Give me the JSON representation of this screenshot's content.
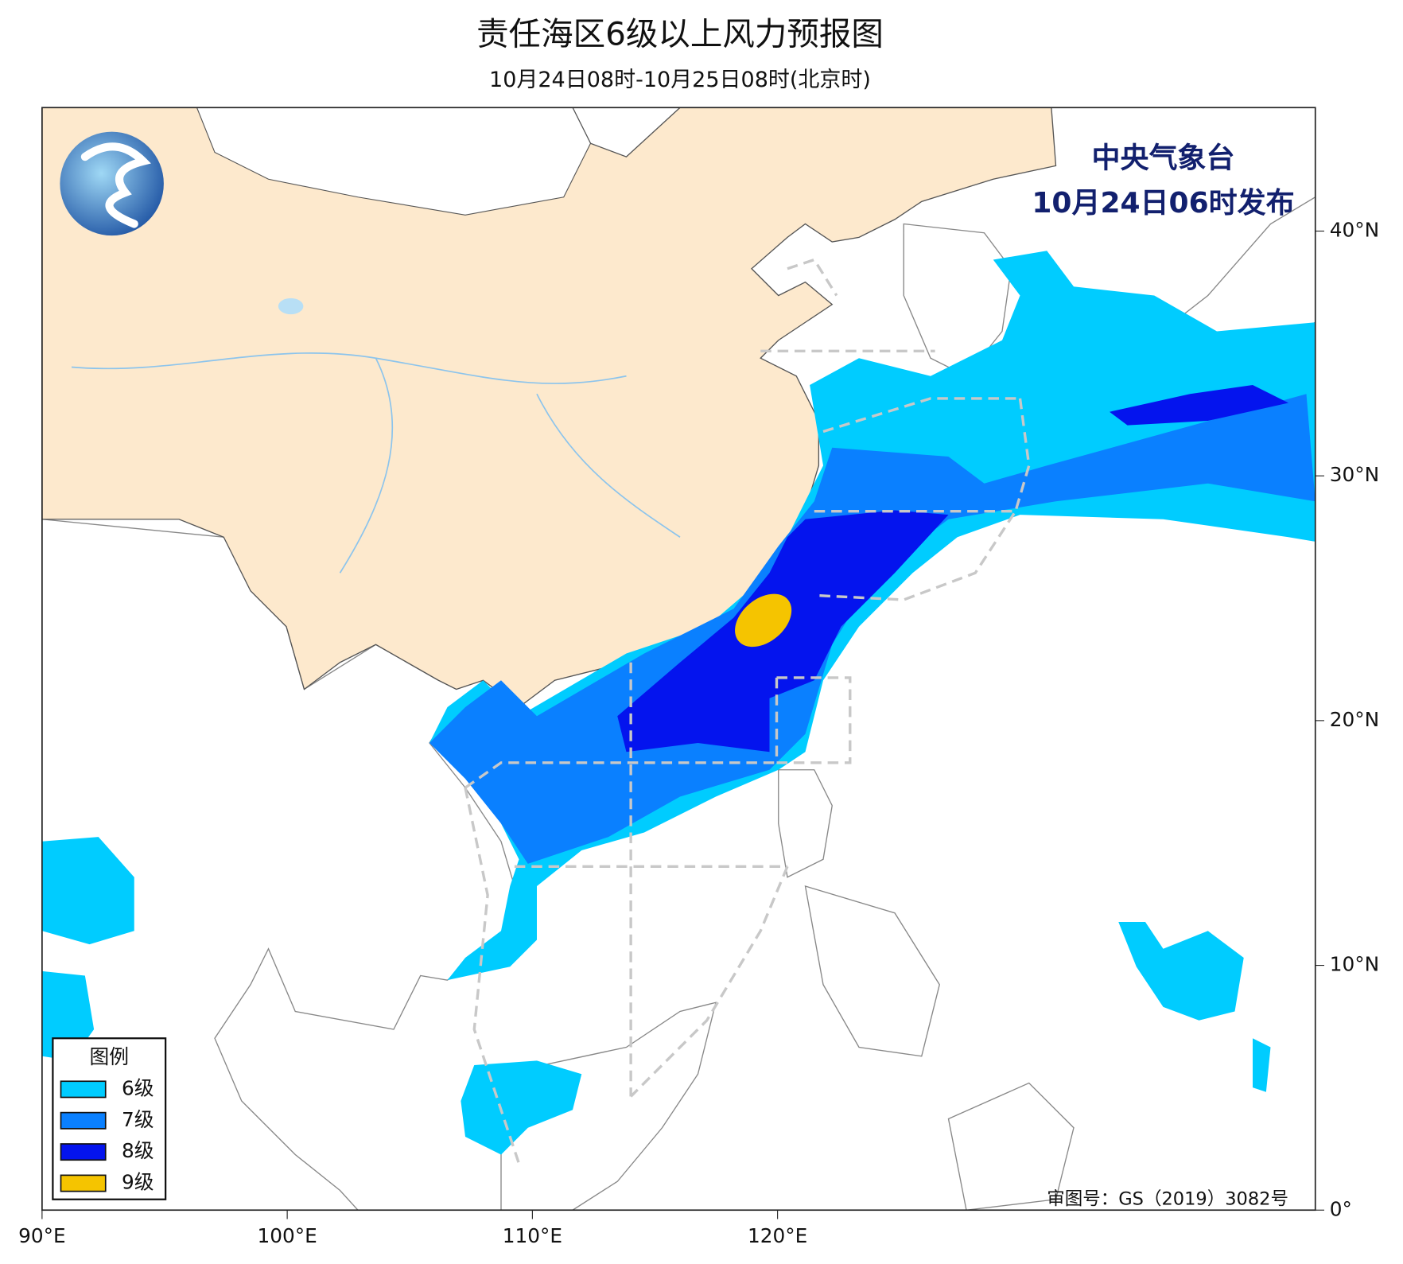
{
  "map": {
    "title": "责任海区6级以上风力预报图",
    "subtitle": "10月24日08时-10月25日08时(北京时)",
    "issuer": [
      "中央气象台",
      "10月24日06时发布"
    ],
    "xticks": [
      "90°E",
      "100°E",
      "110°E",
      "120°E"
    ],
    "yticks": [
      "40°N",
      "30°N",
      "20°N",
      "10°N",
      "0°"
    ],
    "approval": "审图号：GS（2019）3082号"
  },
  "legend": {
    "title": "图例",
    "items": [
      {
        "label": "6级",
        "color": "#00ccff"
      },
      {
        "label": "7级",
        "color": "#0a80ff"
      },
      {
        "label": "8级",
        "color": "#0414ee"
      },
      {
        "label": "9级",
        "color": "#f5c400"
      }
    ]
  }
}
